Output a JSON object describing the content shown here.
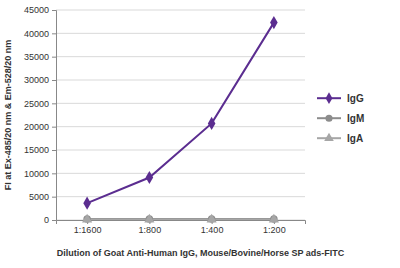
{
  "chart_data": {
    "type": "line",
    "categories": [
      "1:1600",
      "1:800",
      "1:400",
      "1:200"
    ],
    "series": [
      {
        "name": "IgG",
        "color": "#5b2d90",
        "marker": "diamond",
        "values": [
          3600,
          9100,
          20700,
          42300
        ]
      },
      {
        "name": "IgM",
        "color": "#8c8c8c",
        "marker": "circle",
        "values": [
          200,
          200,
          200,
          200
        ]
      },
      {
        "name": "IgA",
        "color": "#a6a6a6",
        "marker": "triangle",
        "values": [
          100,
          100,
          100,
          100
        ]
      }
    ],
    "xlabel": "Dilution of Goat Anti-Human IgG, Mouse/Bovine/Horse SP ads-FITC",
    "ylabel": "FI at Ex-485/20 nm & Em-528/20 nm",
    "ylim": [
      0,
      45000
    ],
    "yticks": [
      0,
      5000,
      10000,
      15000,
      20000,
      25000,
      30000,
      35000,
      40000,
      45000
    ],
    "grid": true,
    "legend": "right"
  }
}
